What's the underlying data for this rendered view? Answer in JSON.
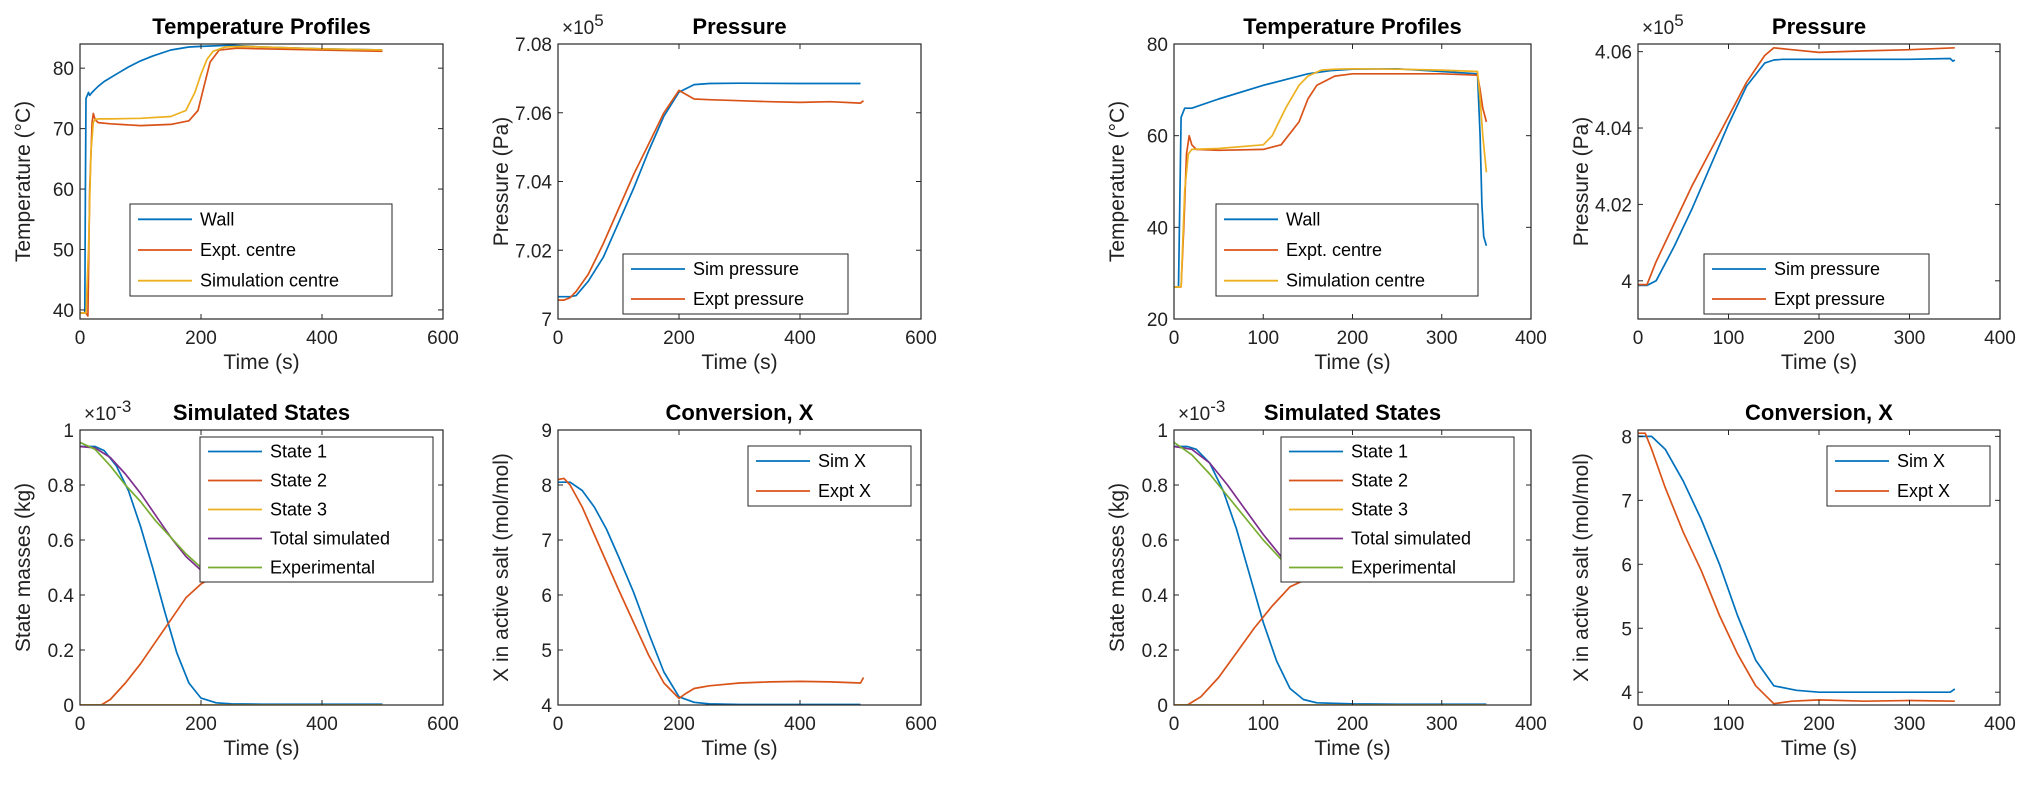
{
  "colors": {
    "blue": "#0072BD",
    "orange": "#D95319",
    "yellow": "#EDB120",
    "purple": "#7E2F8E",
    "green": "#77AC30"
  },
  "chart_data": [
    {
      "id": "p1",
      "type": "line",
      "title": "Temperature Profiles",
      "xlabel": "Time (s)",
      "ylabel": "Temperature (°C)",
      "xlim": [
        0,
        600
      ],
      "ylim": [
        38.5,
        84
      ],
      "xticks": [
        0,
        200,
        400,
        600
      ],
      "yticks": [
        40,
        50,
        60,
        70,
        80
      ],
      "legend": "lower-center",
      "series": [
        {
          "name": "Wall",
          "color": "#0072BD",
          "x": [
            0,
            8,
            9,
            10,
            14,
            16,
            20,
            25,
            30,
            40,
            60,
            80,
            100,
            120,
            150,
            180,
            200,
            250,
            300,
            400,
            500
          ],
          "y": [
            39.5,
            39.5,
            60,
            75,
            76,
            75.5,
            76,
            76.5,
            77,
            77.8,
            79,
            80.2,
            81.2,
            82,
            83,
            83.5,
            83.6,
            83.8,
            83.5,
            83.2,
            83
          ]
        },
        {
          "name": "Expt. centre",
          "color": "#D95319",
          "x": [
            0,
            10,
            13,
            16,
            20,
            22,
            25,
            30,
            50,
            100,
            150,
            180,
            195,
            205,
            215,
            230,
            260,
            300,
            400,
            500
          ],
          "y": [
            39.5,
            39.5,
            39,
            60,
            71,
            72.5,
            71.5,
            71,
            70.8,
            70.5,
            70.7,
            71.3,
            73,
            77,
            81,
            83,
            83.3,
            83.2,
            83,
            82.8
          ]
        },
        {
          "name": "Simulation centre",
          "color": "#EDB120",
          "x": [
            0,
            10,
            14,
            18,
            22,
            25,
            30,
            50,
            100,
            150,
            175,
            190,
            200,
            210,
            220,
            240,
            270,
            300,
            400,
            500
          ],
          "y": [
            39.5,
            39.5,
            50,
            66,
            71,
            71.5,
            71.6,
            71.6,
            71.7,
            72,
            73,
            76,
            79,
            81.5,
            82.8,
            83.5,
            83.6,
            83.5,
            83.2,
            83
          ]
        }
      ]
    },
    {
      "id": "p2",
      "type": "line",
      "title": "Pressure",
      "xlabel": "Time (s)",
      "ylabel": "Pressure (Pa)",
      "exponent": "5",
      "xlim": [
        0,
        600
      ],
      "ylim": [
        7.0,
        7.08
      ],
      "xticks": [
        0,
        200,
        400,
        600
      ],
      "yticks": [
        7,
        7.02,
        7.04,
        7.06,
        7.08
      ],
      "ytickfmt": [
        "7",
        "7.02",
        "7.04",
        "7.06",
        "7.08"
      ],
      "legend": "lower-right",
      "series": [
        {
          "name": "Sim pressure",
          "color": "#0072BD",
          "x": [
            0,
            20,
            30,
            50,
            75,
            100,
            125,
            150,
            175,
            200,
            225,
            250,
            300,
            400,
            500
          ],
          "y": [
            7.0065,
            7.0065,
            7.0068,
            7.011,
            7.018,
            7.028,
            7.038,
            7.049,
            7.059,
            7.066,
            7.0682,
            7.0685,
            7.0686,
            7.0685,
            7.0685
          ]
        },
        {
          "name": "Expt pressure",
          "color": "#D95319",
          "x": [
            0,
            10,
            20,
            30,
            50,
            75,
            100,
            125,
            150,
            175,
            200,
            215,
            225,
            250,
            300,
            350,
            400,
            450,
            500,
            505
          ],
          "y": [
            7.0055,
            7.0055,
            7.0062,
            7.008,
            7.013,
            7.022,
            7.032,
            7.042,
            7.051,
            7.06,
            7.0665,
            7.065,
            7.064,
            7.0638,
            7.0635,
            7.0632,
            7.063,
            7.0632,
            7.0628,
            7.0635
          ]
        }
      ]
    },
    {
      "id": "p3",
      "type": "line",
      "title": "Temperature Profiles",
      "xlabel": "Time (s)",
      "ylabel": "Temperature (°C)",
      "xlim": [
        0,
        400
      ],
      "ylim": [
        20,
        80
      ],
      "xticks": [
        0,
        100,
        200,
        300,
        400
      ],
      "yticks": [
        20,
        40,
        60,
        80
      ],
      "legend": "lower-center",
      "series": [
        {
          "name": "Wall",
          "color": "#0072BD",
          "x": [
            0,
            5,
            8,
            12,
            20,
            50,
            100,
            150,
            175,
            200,
            250,
            300,
            340,
            343,
            345,
            347,
            350
          ],
          "y": [
            27,
            27,
            64,
            66,
            66,
            68,
            71,
            73.5,
            74.2,
            74.5,
            74.6,
            74,
            73.5,
            60,
            45,
            38,
            36
          ]
        },
        {
          "name": "Expt. centre",
          "color": "#D95319",
          "x": [
            0,
            8,
            11,
            14,
            17,
            20,
            25,
            50,
            100,
            120,
            140,
            150,
            160,
            170,
            180,
            200,
            250,
            300,
            340,
            343,
            346,
            350
          ],
          "y": [
            27,
            27,
            40,
            56,
            60,
            58,
            57,
            56.8,
            57,
            58,
            63,
            68,
            71,
            72,
            73,
            73.5,
            73.5,
            73.5,
            73.2,
            70,
            66,
            63
          ]
        },
        {
          "name": "Simulation centre",
          "color": "#EDB120",
          "x": [
            0,
            8,
            12,
            16,
            20,
            50,
            100,
            110,
            125,
            140,
            150,
            165,
            180,
            200,
            250,
            300,
            340,
            343,
            346,
            350
          ],
          "y": [
            27,
            27,
            48,
            56,
            57,
            57.2,
            58,
            60,
            66,
            71,
            73,
            74.3,
            74.5,
            74.6,
            74.5,
            74.3,
            74,
            68,
            60,
            52
          ]
        }
      ]
    },
    {
      "id": "p4",
      "type": "line",
      "title": "Pressure",
      "xlabel": "Time (s)",
      "ylabel": "Pressure (Pa)",
      "exponent": "5",
      "xlim": [
        0,
        400
      ],
      "ylim": [
        3.99,
        4.062
      ],
      "xticks": [
        0,
        100,
        200,
        300,
        400
      ],
      "yticks": [
        4,
        4.02,
        4.04,
        4.06
      ],
      "ytickfmt": [
        "4",
        "4.02",
        "4.04",
        "4.06"
      ],
      "legend": "lower-right",
      "series": [
        {
          "name": "Sim pressure",
          "color": "#0072BD",
          "x": [
            0,
            10,
            20,
            40,
            60,
            80,
            100,
            120,
            140,
            150,
            160,
            200,
            250,
            300,
            345,
            348,
            350
          ],
          "y": [
            3.9988,
            3.9988,
            4.0,
            4.009,
            4.019,
            4.03,
            4.041,
            4.051,
            4.057,
            4.0578,
            4.058,
            4.058,
            4.058,
            4.058,
            4.0582,
            4.0575,
            4.0578
          ]
        },
        {
          "name": "Expt pressure",
          "color": "#D95319",
          "x": [
            0,
            10,
            20,
            40,
            60,
            80,
            100,
            120,
            140,
            150,
            170,
            200,
            250,
            300,
            350
          ],
          "y": [
            3.999,
            3.999,
            4.005,
            4.015,
            4.025,
            4.034,
            4.043,
            4.052,
            4.059,
            4.061,
            4.0605,
            4.0598,
            4.0602,
            4.0605,
            4.061
          ]
        }
      ]
    },
    {
      "id": "p5",
      "type": "line",
      "title": "Simulated States",
      "xlabel": "Time (s)",
      "ylabel": "State masses (kg)",
      "exponent": "-3",
      "xlim": [
        0,
        600
      ],
      "ylim": [
        0,
        1
      ],
      "xticks": [
        0,
        200,
        400,
        600
      ],
      "yticks": [
        0,
        0.2,
        0.4,
        0.6,
        0.8,
        1
      ],
      "ytickfmt": [
        "0",
        "0.2",
        "0.4",
        "0.6",
        "0.8",
        "1"
      ],
      "legend": "top-right",
      "series": [
        {
          "name": "State 1",
          "color": "#0072BD",
          "x": [
            0,
            25,
            40,
            60,
            80,
            100,
            120,
            140,
            160,
            180,
            200,
            225,
            250,
            300,
            400,
            500
          ],
          "y": [
            0.94,
            0.94,
            0.925,
            0.87,
            0.78,
            0.65,
            0.5,
            0.34,
            0.19,
            0.08,
            0.025,
            0.008,
            0.004,
            0.003,
            0.003,
            0.003
          ]
        },
        {
          "name": "State 2",
          "color": "#D95319",
          "x": [
            0,
            35,
            50,
            75,
            100,
            125,
            150,
            175,
            200,
            215
          ],
          "y": [
            0,
            0,
            0.02,
            0.08,
            0.15,
            0.23,
            0.31,
            0.39,
            0.44,
            0.46
          ]
        },
        {
          "name": "State 3",
          "color": "#EDB120",
          "x": [
            0,
            500
          ],
          "y": [
            0,
            0
          ]
        },
        {
          "name": "Total simulated",
          "color": "#7E2F8E",
          "x": [
            0,
            25,
            50,
            75,
            100,
            125,
            150,
            175,
            200
          ],
          "y": [
            0.94,
            0.935,
            0.9,
            0.84,
            0.77,
            0.69,
            0.61,
            0.54,
            0.49
          ]
        },
        {
          "name": "Experimental",
          "color": "#77AC30",
          "x": [
            0,
            25,
            50,
            75,
            100,
            125,
            150,
            175,
            200
          ],
          "y": [
            0.955,
            0.93,
            0.87,
            0.8,
            0.74,
            0.67,
            0.61,
            0.55,
            0.5
          ]
        }
      ]
    },
    {
      "id": "p6",
      "type": "line",
      "title": "Conversion, X",
      "xlabel": "Time (s)",
      "ylabel": "X in active salt (mol/mol)",
      "xlim": [
        0,
        600
      ],
      "ylim": [
        4,
        9
      ],
      "xticks": [
        0,
        200,
        400,
        600
      ],
      "yticks": [
        4,
        5,
        6,
        7,
        8,
        9
      ],
      "legend": "top-right",
      "series": [
        {
          "name": "Sim X",
          "color": "#0072BD",
          "x": [
            0,
            20,
            40,
            60,
            80,
            100,
            125,
            150,
            175,
            200,
            225,
            250,
            300,
            400,
            500
          ],
          "y": [
            8.05,
            8.05,
            7.9,
            7.6,
            7.2,
            6.7,
            6.05,
            5.3,
            4.6,
            4.15,
            4.05,
            4.02,
            4.01,
            4.01,
            4.01
          ]
        },
        {
          "name": "Expt X",
          "color": "#D95319",
          "x": [
            0,
            10,
            20,
            40,
            60,
            80,
            100,
            125,
            150,
            175,
            200,
            210,
            225,
            250,
            300,
            350,
            400,
            450,
            500,
            505
          ],
          "y": [
            8.1,
            8.12,
            8.0,
            7.6,
            7.1,
            6.6,
            6.1,
            5.5,
            4.9,
            4.4,
            4.12,
            4.2,
            4.3,
            4.35,
            4.4,
            4.42,
            4.43,
            4.42,
            4.4,
            4.5
          ]
        }
      ]
    },
    {
      "id": "p7",
      "type": "line",
      "title": "Simulated States",
      "xlabel": "Time (s)",
      "ylabel": "State masses (kg)",
      "exponent": "-3",
      "xlim": [
        0,
        400
      ],
      "ylim": [
        0,
        1
      ],
      "xticks": [
        0,
        100,
        200,
        300,
        400
      ],
      "yticks": [
        0,
        0.2,
        0.4,
        0.6,
        0.8,
        1
      ],
      "ytickfmt": [
        "0",
        "0.2",
        "0.4",
        "0.6",
        "0.8",
        "1"
      ],
      "legend": "top-right",
      "series": [
        {
          "name": "State 1",
          "color": "#0072BD",
          "x": [
            0,
            15,
            25,
            40,
            55,
            70,
            85,
            100,
            115,
            130,
            145,
            160,
            200,
            250,
            300,
            350
          ],
          "y": [
            0.94,
            0.94,
            0.93,
            0.88,
            0.78,
            0.64,
            0.47,
            0.3,
            0.16,
            0.06,
            0.02,
            0.008,
            0.004,
            0.003,
            0.003,
            0.003
          ]
        },
        {
          "name": "State 2",
          "color": "#D95319",
          "x": [
            0,
            15,
            30,
            50,
            70,
            90,
            110,
            130,
            150
          ],
          "y": [
            0,
            0,
            0.03,
            0.1,
            0.19,
            0.28,
            0.36,
            0.43,
            0.46
          ]
        },
        {
          "name": "State 3",
          "color": "#EDB120",
          "x": [
            0,
            350
          ],
          "y": [
            0,
            0
          ]
        },
        {
          "name": "Total simulated",
          "color": "#7E2F8E",
          "x": [
            0,
            20,
            40,
            60,
            80,
            100,
            120,
            135
          ],
          "y": [
            0.94,
            0.93,
            0.88,
            0.8,
            0.71,
            0.62,
            0.54,
            0.49
          ]
        },
        {
          "name": "Experimental",
          "color": "#77AC30",
          "x": [
            0,
            20,
            40,
            60,
            80,
            100,
            120,
            135
          ],
          "y": [
            0.955,
            0.91,
            0.84,
            0.76,
            0.68,
            0.6,
            0.53,
            0.49
          ]
        }
      ]
    },
    {
      "id": "p8",
      "type": "line",
      "title": "Conversion, X",
      "xlabel": "Time (s)",
      "ylabel": "X in active salt (mol/mol)",
      "xlim": [
        0,
        400
      ],
      "ylim": [
        3.8,
        8.1
      ],
      "xticks": [
        0,
        100,
        200,
        300,
        400
      ],
      "yticks": [
        4,
        5,
        6,
        7,
        8
      ],
      "legend": "top-right",
      "series": [
        {
          "name": "Sim X",
          "color": "#0072BD",
          "x": [
            0,
            15,
            30,
            50,
            70,
            90,
            110,
            130,
            150,
            175,
            200,
            250,
            300,
            345,
            350
          ],
          "y": [
            8.0,
            8.0,
            7.8,
            7.3,
            6.7,
            6.0,
            5.2,
            4.5,
            4.1,
            4.03,
            4.0,
            4.0,
            4.0,
            4.0,
            4.05
          ]
        },
        {
          "name": "Expt X",
          "color": "#D95319",
          "x": [
            0,
            8,
            15,
            30,
            50,
            70,
            90,
            110,
            130,
            150,
            170,
            200,
            250,
            300,
            350
          ],
          "y": [
            8.05,
            8.05,
            7.8,
            7.2,
            6.5,
            5.9,
            5.2,
            4.6,
            4.1,
            3.82,
            3.86,
            3.88,
            3.86,
            3.87,
            3.86
          ]
        }
      ]
    }
  ]
}
